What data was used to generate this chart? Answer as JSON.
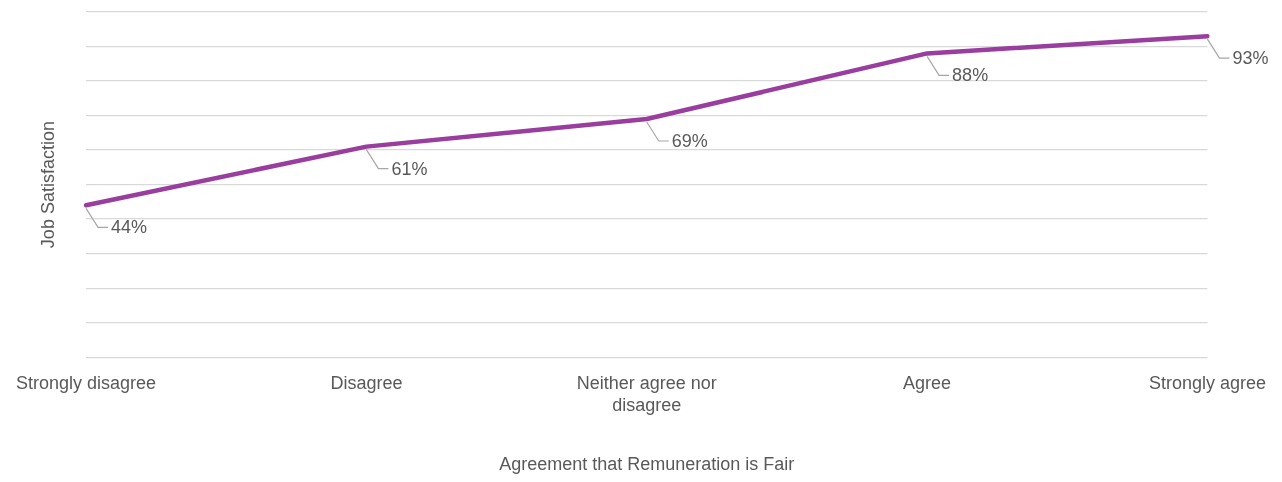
{
  "chart_data": {
    "type": "line",
    "xlabel": "Agreement that Remuneration is Fair",
    "ylabel": "Job Satisfaction",
    "categories": [
      "Strongly disagree",
      "Disagree",
      "Neither agree nor disagree",
      "Agree",
      "Strongly agree"
    ],
    "series": [
      {
        "color": "#993d9e",
        "values": [
          44,
          61,
          69,
          88,
          93
        ],
        "value_labels": [
          "44%",
          "61%",
          "69%",
          "88%",
          "93%"
        ]
      }
    ],
    "grid": "y",
    "tick_labels": "x",
    "legend": false,
    "marker": "none",
    "line_style": "solid"
  }
}
